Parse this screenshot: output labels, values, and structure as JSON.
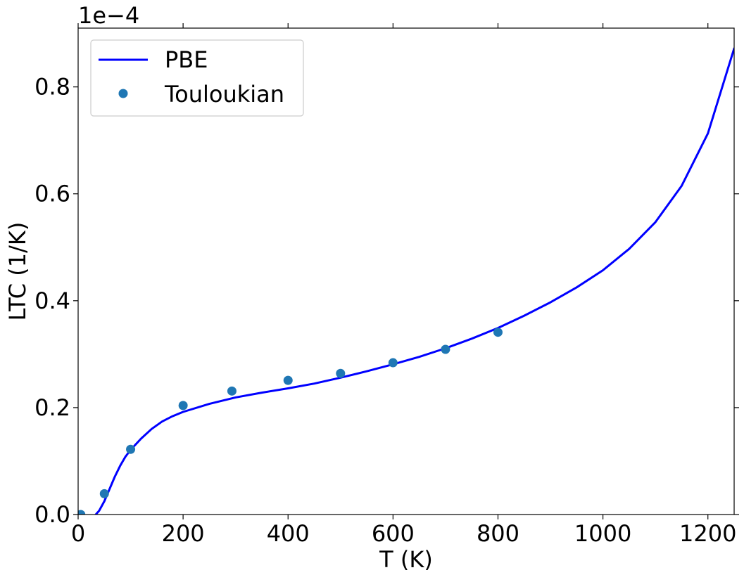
{
  "chart_data": {
    "type": "line",
    "title": "",
    "xlabel": "T (K)",
    "ylabel": "LTC (1/K)",
    "y_offset_text": "1e−4",
    "xlim": [
      0,
      1250
    ],
    "ylim": [
      0,
      0.91
    ],
    "xticks": [
      0,
      200,
      400,
      600,
      800,
      1000,
      1200
    ],
    "xtick_labels": [
      "0",
      "200",
      "400",
      "600",
      "800",
      "1000",
      "1200"
    ],
    "yticks": [
      0.0,
      0.2,
      0.4,
      0.6,
      0.8
    ],
    "ytick_labels": [
      "0.0",
      "0.2",
      "0.4",
      "0.6",
      "0.8"
    ],
    "grid": false,
    "legend_position": "upper-left",
    "series": [
      {
        "name": "PBE",
        "kind": "line",
        "color": "#0000ff",
        "x": [
          0,
          10,
          20,
          30,
          40,
          50,
          60,
          70,
          80,
          90,
          100,
          120,
          140,
          160,
          180,
          200,
          250,
          300,
          350,
          400,
          450,
          500,
          550,
          600,
          650,
          700,
          750,
          800,
          850,
          900,
          950,
          1000,
          1050,
          1100,
          1150,
          1200,
          1250
        ],
        "y": [
          0.0,
          -0.003,
          -0.007,
          -0.004,
          0.007,
          0.025,
          0.048,
          0.071,
          0.091,
          0.108,
          0.121,
          0.142,
          0.16,
          0.174,
          0.184,
          0.192,
          0.207,
          0.219,
          0.228,
          0.236,
          0.245,
          0.256,
          0.268,
          0.281,
          0.295,
          0.311,
          0.329,
          0.349,
          0.372,
          0.397,
          0.425,
          0.457,
          0.497,
          0.547,
          0.615,
          0.713,
          0.872
        ]
      },
      {
        "name": "Touloukian",
        "kind": "scatter",
        "color": "#1f77b4",
        "x": [
          5,
          50,
          100,
          200,
          293,
          400,
          500,
          600,
          700,
          800
        ],
        "y": [
          0.0,
          0.039,
          0.122,
          0.204,
          0.231,
          0.251,
          0.264,
          0.284,
          0.309,
          0.341
        ]
      }
    ]
  }
}
